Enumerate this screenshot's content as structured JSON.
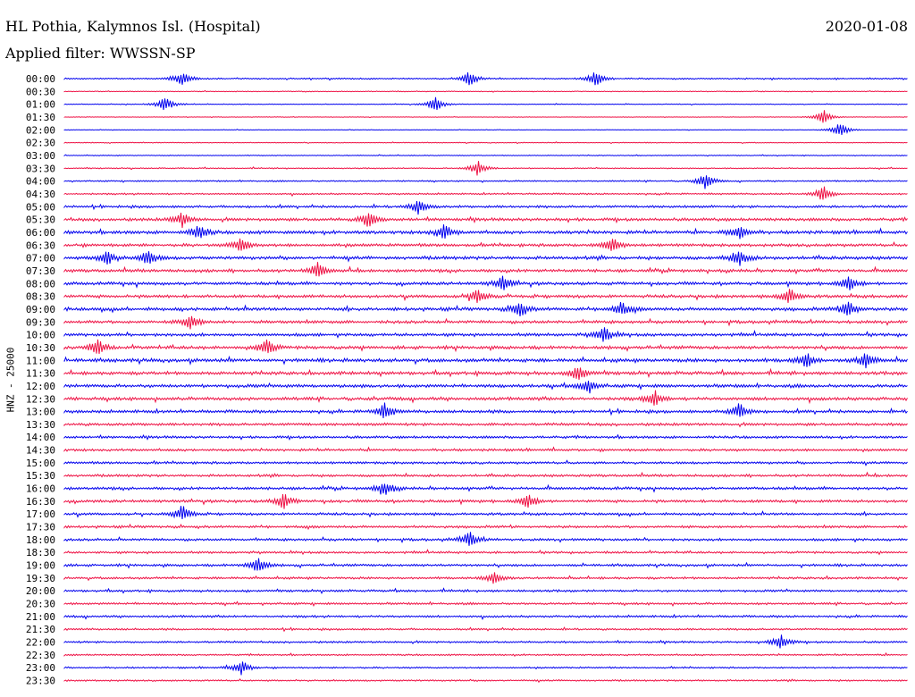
{
  "header": {
    "title": "HL Pothia, Kalymnos Isl. (Hospital)",
    "date": "2020-01-08",
    "filter": "Applied filter: WWSSN-SP"
  },
  "chart_data": {
    "type": "line",
    "ylabel": "HNZ - 25000",
    "colors": [
      "#0000ee",
      "#ee1144"
    ],
    "rows": [
      {
        "time": "00:00",
        "level": 0.25,
        "events": [
          0.14,
          0.48,
          0.63
        ]
      },
      {
        "time": "00:30",
        "level": 0.15,
        "events": []
      },
      {
        "time": "01:00",
        "level": 0.15,
        "events": [
          0.12,
          0.44
        ]
      },
      {
        "time": "01:30",
        "level": 0.1,
        "events": [
          0.9
        ]
      },
      {
        "time": "02:00",
        "level": 0.1,
        "events": [
          0.92
        ]
      },
      {
        "time": "02:30",
        "level": 0.15,
        "events": []
      },
      {
        "time": "03:00",
        "level": 0.15,
        "events": []
      },
      {
        "time": "03:30",
        "level": 0.2,
        "events": [
          0.49
        ]
      },
      {
        "time": "04:00",
        "level": 0.25,
        "events": [
          0.76
        ]
      },
      {
        "time": "04:30",
        "level": 0.3,
        "events": [
          0.9
        ]
      },
      {
        "time": "05:00",
        "level": 0.45,
        "events": [
          0.42
        ]
      },
      {
        "time": "05:30",
        "level": 0.55,
        "events": [
          0.14,
          0.36
        ]
      },
      {
        "time": "06:00",
        "level": 0.6,
        "events": [
          0.16,
          0.45,
          0.8
        ]
      },
      {
        "time": "06:30",
        "level": 0.55,
        "events": [
          0.21,
          0.65
        ]
      },
      {
        "time": "07:00",
        "level": 0.6,
        "events": [
          0.05,
          0.1,
          0.8
        ]
      },
      {
        "time": "07:30",
        "level": 0.55,
        "events": [
          0.3
        ]
      },
      {
        "time": "08:00",
        "level": 0.55,
        "events": [
          0.52,
          0.93
        ]
      },
      {
        "time": "08:30",
        "level": 0.55,
        "events": [
          0.49,
          0.86
        ]
      },
      {
        "time": "09:00",
        "level": 0.6,
        "events": [
          0.54,
          0.66,
          0.93
        ]
      },
      {
        "time": "09:30",
        "level": 0.55,
        "events": [
          0.15
        ]
      },
      {
        "time": "10:00",
        "level": 0.55,
        "events": [
          0.64
        ]
      },
      {
        "time": "10:30",
        "level": 0.6,
        "events": [
          0.04,
          0.24
        ]
      },
      {
        "time": "11:00",
        "level": 0.65,
        "events": [
          0.88,
          0.95
        ]
      },
      {
        "time": "11:30",
        "level": 0.6,
        "events": [
          0.61
        ]
      },
      {
        "time": "12:00",
        "level": 0.6,
        "events": [
          0.62
        ]
      },
      {
        "time": "12:30",
        "level": 0.6,
        "events": [
          0.7
        ]
      },
      {
        "time": "13:00",
        "level": 0.55,
        "events": [
          0.38,
          0.8
        ]
      },
      {
        "time": "13:30",
        "level": 0.5,
        "events": []
      },
      {
        "time": "14:00",
        "level": 0.45,
        "events": []
      },
      {
        "time": "14:30",
        "level": 0.45,
        "events": []
      },
      {
        "time": "15:00",
        "level": 0.45,
        "events": []
      },
      {
        "time": "15:30",
        "level": 0.45,
        "events": []
      },
      {
        "time": "16:00",
        "level": 0.5,
        "events": [
          0.38
        ]
      },
      {
        "time": "16:30",
        "level": 0.5,
        "events": [
          0.26,
          0.55
        ]
      },
      {
        "time": "17:00",
        "level": 0.45,
        "events": [
          0.14
        ]
      },
      {
        "time": "17:30",
        "level": 0.45,
        "events": []
      },
      {
        "time": "18:00",
        "level": 0.45,
        "events": [
          0.48
        ]
      },
      {
        "time": "18:30",
        "level": 0.4,
        "events": []
      },
      {
        "time": "19:00",
        "level": 0.45,
        "events": [
          0.23
        ]
      },
      {
        "time": "19:30",
        "level": 0.4,
        "events": [
          0.51
        ]
      },
      {
        "time": "20:00",
        "level": 0.4,
        "events": []
      },
      {
        "time": "20:30",
        "level": 0.4,
        "events": []
      },
      {
        "time": "21:00",
        "level": 0.4,
        "events": []
      },
      {
        "time": "21:30",
        "level": 0.35,
        "events": []
      },
      {
        "time": "22:00",
        "level": 0.35,
        "events": [
          0.85
        ]
      },
      {
        "time": "22:30",
        "level": 0.3,
        "events": []
      },
      {
        "time": "23:00",
        "level": 0.3,
        "events": [
          0.21
        ]
      },
      {
        "time": "23:30",
        "level": 0.3,
        "events": []
      }
    ]
  }
}
